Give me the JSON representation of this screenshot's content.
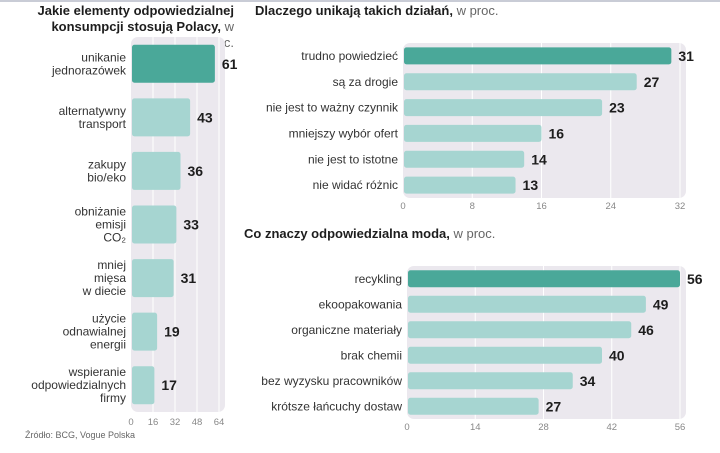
{
  "colors": {
    "highlight": "#4aa899",
    "bar": "#a6d5d1",
    "panel": "#ebe8ee",
    "grid": "#ffffff"
  },
  "chart_data": [
    {
      "id": "left",
      "type": "bar",
      "orientation": "horizontal",
      "title_bold": "Jakie elementy odpowiedzialnej konsumpcji stosują Polacy,",
      "title_bold_line1": "Jakie elementy odpowiedzialnej",
      "title_bold_line2": "konsumpcji stosują Polacy,",
      "title_unit": "w proc.",
      "categories": [
        [
          "unikanie",
          "jednorazówek"
        ],
        [
          "alternatywny",
          "transport"
        ],
        [
          "zakupy",
          "bio/eko"
        ],
        [
          "obniżanie",
          "emisji",
          "CO₂"
        ],
        [
          "mniej",
          "mięsa",
          "w diecie"
        ],
        [
          "użycie",
          "odnawialnej",
          "energii"
        ],
        [
          "wspieranie",
          "odpowiedzialnych",
          "firmy"
        ]
      ],
      "values": [
        61,
        43,
        36,
        33,
        31,
        19,
        17
      ],
      "highlight_index": 0,
      "xlim": [
        0,
        64
      ],
      "xticks": [
        0,
        16,
        32,
        48,
        64
      ],
      "grid": true
    },
    {
      "id": "top-right",
      "type": "bar",
      "orientation": "horizontal",
      "title_bold": "Dlaczego unikają takich działań,",
      "title_unit": "w proc.",
      "categories": [
        "trudno powiedzieć",
        "są za drogie",
        "nie jest to ważny czynnik",
        "mniejszy wybór ofert",
        "nie jest to istotne",
        "nie widać różnic"
      ],
      "values": [
        31,
        27,
        23,
        16,
        14,
        13
      ],
      "highlight_index": 0,
      "xlim": [
        0,
        32
      ],
      "xticks": [
        0,
        8,
        16,
        24,
        32
      ],
      "grid": true
    },
    {
      "id": "bottom-right",
      "type": "bar",
      "orientation": "horizontal",
      "title_bold": "Co znaczy odpowiedzialna moda,",
      "title_unit": "w proc.",
      "categories": [
        "recykling",
        "ekoopakowania",
        "organiczne materiały",
        "brak chemii",
        "bez wyzysku pracowników",
        "krótsze łańcuchy dostaw"
      ],
      "values": [
        56,
        49,
        46,
        40,
        34,
        27
      ],
      "highlight_index": 0,
      "xlim": [
        0,
        56
      ],
      "xticks": [
        0,
        14,
        28,
        42,
        56
      ],
      "grid": true
    }
  ],
  "source": "Źródło: BCG, Vogue Polska"
}
